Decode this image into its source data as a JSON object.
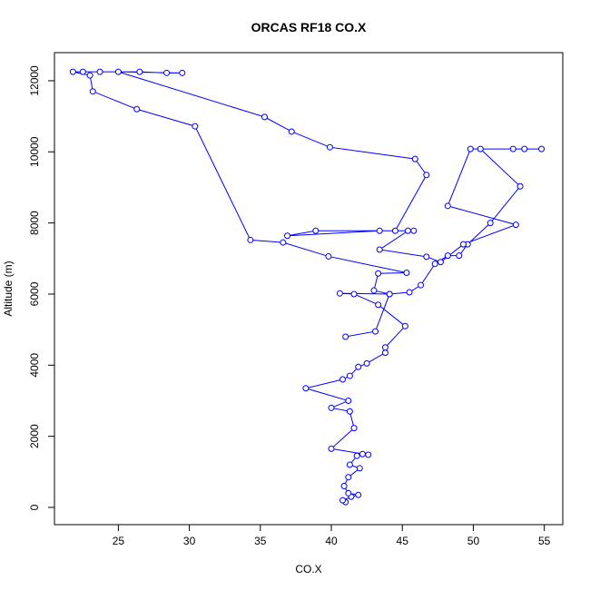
{
  "chart_data": {
    "type": "line",
    "title": "ORCAS RF18 CO.X",
    "x_label": "CO.X",
    "y_label": "Altitude (m)",
    "series": [
      {
        "name": "CO.X",
        "color": "#0000ff",
        "x": [
          41.0,
          40.8,
          41.4,
          41.9,
          41.2,
          40.9,
          41.2,
          42.0,
          41.3,
          41.8,
          42.2,
          42.6,
          40.0,
          41.6,
          41.3,
          40.0,
          41.2,
          38.2,
          40.8,
          41.3,
          41.9,
          42.5,
          43.8,
          43.8,
          45.2,
          43.3,
          41.6,
          40.6,
          44.1,
          45.5,
          46.3,
          47.3,
          48.2,
          49.0,
          49.6,
          51.2,
          53.3,
          50.5,
          52.8,
          54.8,
          53.6,
          49.8,
          48.2,
          53.0,
          49.3,
          47.7,
          46.7,
          43.4,
          45.4,
          38.9,
          36.9,
          43.4,
          45.8,
          44.5,
          46.7,
          45.9,
          39.9,
          37.2,
          35.3,
          25.0,
          29.5,
          28.4,
          26.5,
          23.7,
          22.5,
          21.8,
          23.0,
          23.2,
          26.3,
          30.4,
          34.3,
          36.6,
          39.8,
          45.3,
          43.3,
          43.0,
          44.1,
          43.1,
          41.0
        ],
        "values": [
          150,
          200,
          300,
          350,
          400,
          600,
          850,
          1100,
          1200,
          1450,
          1500,
          1480,
          1650,
          2230,
          2700,
          2800,
          3000,
          3350,
          3600,
          3700,
          3950,
          4050,
          4350,
          4500,
          5100,
          5700,
          6000,
          6020,
          6000,
          6050,
          6250,
          6850,
          7080,
          7080,
          7400,
          8000,
          9030,
          10080,
          10080,
          10080,
          10080,
          10080,
          8480,
          7950,
          7400,
          6900,
          7050,
          7250,
          7780,
          7780,
          7640,
          7780,
          7780,
          7780,
          9350,
          9800,
          10130,
          10570,
          10980,
          12250,
          12220,
          12220,
          12250,
          12250,
          12250,
          12250,
          12150,
          11700,
          11200,
          10720,
          7520,
          7450,
          7060,
          6600,
          6580,
          6100,
          6000,
          4950,
          4800
        ]
      }
    ],
    "xlim": [
      20.5,
      56.3
    ],
    "ylim": [
      -485,
      12790
    ],
    "xticks": [
      25,
      30,
      35,
      40,
      45,
      50,
      55
    ],
    "yticks": [
      0,
      2000,
      4000,
      6000,
      8000,
      10000,
      12000
    ]
  }
}
